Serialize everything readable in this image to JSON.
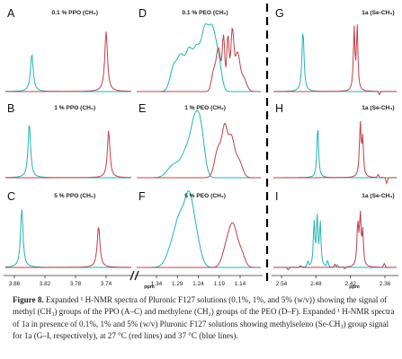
{
  "figure": {
    "colors": {
      "cyan": "#22b6b0",
      "red": "#c0404a",
      "axis": "#333333",
      "divider": "#000000"
    },
    "panels": [
      {
        "id": "A",
        "label": "A",
        "title": "0.1 % PPO (CH₃)"
      },
      {
        "id": "B",
        "label": "B",
        "title": "1 % PPO (CH₃)"
      },
      {
        "id": "C",
        "label": "C",
        "title": "5 % PPO (CH₃)"
      },
      {
        "id": "D",
        "label": "D",
        "title": "0.1 % PEO (CH₂)"
      },
      {
        "id": "E",
        "label": "E",
        "title": "1 % PEO (CH₂)"
      },
      {
        "id": "F",
        "label": "F",
        "title": "5 % PEO (CH₂)"
      },
      {
        "id": "G",
        "label": "G",
        "title": "1a (Se-CH₃)"
      },
      {
        "id": "H",
        "label": "H",
        "title": "1a (Se-CH₃)"
      },
      {
        "id": "I",
        "label": "I",
        "title": "1a (Se-CH₃)"
      }
    ],
    "axes": [
      {
        "id": "ax1",
        "ticks": [
          "3.86",
          "3.82",
          "3.78",
          "3.74"
        ]
      },
      {
        "id": "ax2",
        "ticks": [
          "1.34",
          "1.29",
          "1.24",
          "1.19",
          "1.14"
        ],
        "unit": "ppm"
      },
      {
        "id": "ax3",
        "ticks": [
          "2.54",
          "2.48",
          "2.42",
          "2.36"
        ],
        "unit": "ppm"
      }
    ]
  },
  "caption": {
    "figure_label": "Figure 8.",
    "text": "Expanded ¹ H-NMR spectra of Pluronic F127 solutions (0.1%, 1%, and 5% (w/v)) showing the signal of methyl (CH₃) groups of the PPO (A–C) and methylene (CH₂) groups of the PEO (D–F). Expanded ¹ H-NMR spectra of 1a in presence of 0.1%, 1% and 5% (w/v) Pluronic F127 solutions showing methylseleno (Se-CH₃) group signal for 1a (G–I, respectively), at 27 °C (red lines) and 37 °C (blue lines)."
  }
}
